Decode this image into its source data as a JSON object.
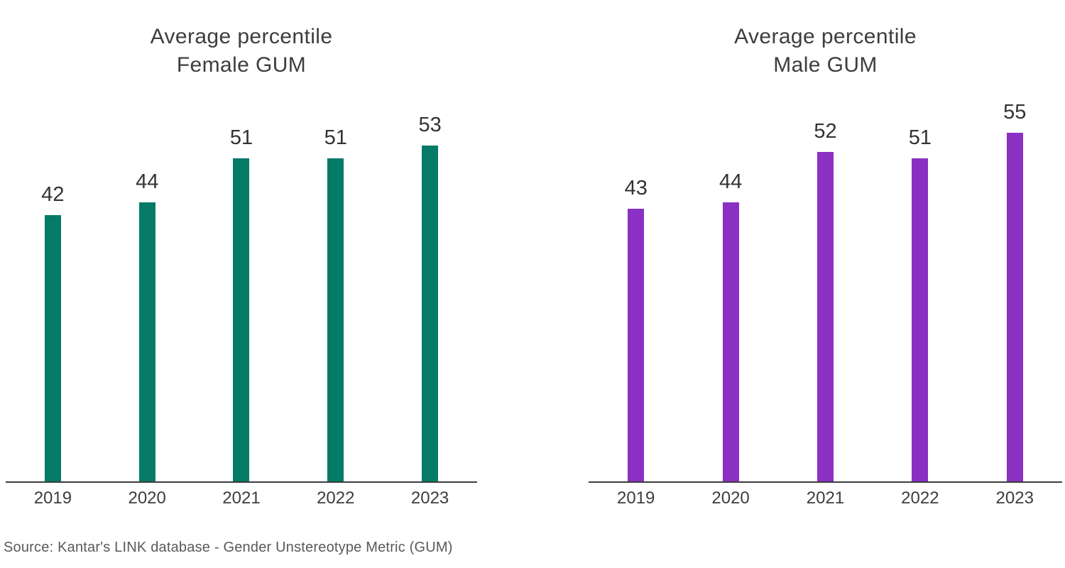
{
  "page": {
    "background": "#ffffff",
    "source_note": "Source: Kantar's LINK database - Gender Unstereotype Metric (GUM)"
  },
  "colors": {
    "text_dark": "#3d3d3d",
    "value_label": "#333333",
    "axis": "#3d3d3d",
    "female_bar": "#057a66",
    "male_bar": "#8a30c3",
    "source_text": "#595959"
  },
  "chart_data": [
    {
      "type": "bar",
      "title": "Average percentile Female GUM",
      "title_lines": [
        "Average percentile",
        "Female GUM"
      ],
      "categories": [
        "2019",
        "2020",
        "2021",
        "2022",
        "2023"
      ],
      "values": [
        42,
        44,
        51,
        51,
        53
      ],
      "bar_color": "#057a66",
      "xlabel": "",
      "ylabel": "",
      "ylim": [
        0,
        62
      ],
      "grid": false,
      "legend": false,
      "value_labels_position": "above bars"
    },
    {
      "type": "bar",
      "title": "Average percentile Male GUM",
      "title_lines": [
        "Average percentile",
        "Male GUM"
      ],
      "categories": [
        "2019",
        "2020",
        "2021",
        "2022",
        "2023"
      ],
      "values": [
        43,
        44,
        52,
        51,
        55
      ],
      "bar_color": "#8a30c3",
      "xlabel": "",
      "ylabel": "",
      "ylim": [
        0,
        62
      ],
      "grid": false,
      "legend": false,
      "value_labels_position": "above bars"
    }
  ]
}
